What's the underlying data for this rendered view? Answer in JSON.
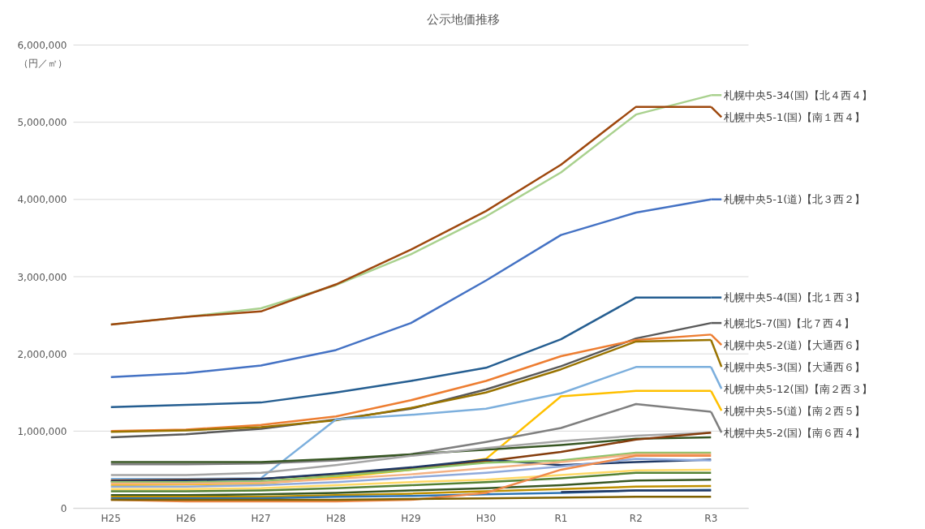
{
  "chart_data": {
    "type": "line",
    "title": "公示地価推移",
    "ylabel": "（円／㎡）",
    "categories": [
      "H25",
      "H26",
      "H27",
      "H28",
      "H29",
      "H30",
      "R1",
      "R2",
      "R3"
    ],
    "ylim": [
      0,
      6000000
    ],
    "yticks": [
      0,
      {
        "value": 1000000,
        "label": "1,000,000"
      },
      {
        "value": 2000000,
        "label": "2,000,000"
      },
      {
        "value": 3000000,
        "label": "3,000,000"
      },
      {
        "value": 4000000,
        "label": "4,000,000"
      },
      {
        "value": 5000000,
        "label": "5,000,000"
      },
      {
        "value": 6000000,
        "label": "6,000,000"
      }
    ],
    "grid": "y",
    "legend": "right",
    "marker": "none",
    "line_style": "solid",
    "series": [
      {
        "name": "札幌中央5-34(国)【北４西４】",
        "color": "#a9d18e",
        "values": [
          2380000,
          2480000,
          2590000,
          2890000,
          3290000,
          3780000,
          4350000,
          5100000,
          5350000
        ]
      },
      {
        "name": "札幌中央5-1(国)【南１西４】",
        "color": "#9e480e",
        "values": [
          2380000,
          2480000,
          2550000,
          2900000,
          3350000,
          3850000,
          4450000,
          5200000,
          5200000
        ]
      },
      {
        "name": "札幌中央5-1(道)【北３西２】",
        "color": "#4472c4",
        "values": [
          1700000,
          1750000,
          1850000,
          2050000,
          2400000,
          2950000,
          3540000,
          3830000,
          4000000
        ]
      },
      {
        "name": "札幌中央5-4(国)【北１西３】",
        "color": "#255e91",
        "values": [
          1310000,
          1340000,
          1370000,
          1500000,
          1650000,
          1820000,
          2190000,
          2730000,
          2730000
        ]
      },
      {
        "name": "札幌北5-7(国)【北７西４】",
        "color": "#595959",
        "values": [
          920000,
          960000,
          1030000,
          1150000,
          1290000,
          1540000,
          1840000,
          2200000,
          2400000
        ]
      },
      {
        "name": "札幌中央5-2(道)【大通西６】",
        "color": "#ed7d31",
        "values": [
          1000000,
          1020000,
          1080000,
          1190000,
          1400000,
          1650000,
          1970000,
          2180000,
          2250000
        ]
      },
      {
        "name": "札幌中央5-3(国)【大通西６】",
        "color": "#997300",
        "values": [
          990000,
          1010000,
          1050000,
          1140000,
          1300000,
          1500000,
          1800000,
          2160000,
          2180000
        ]
      },
      {
        "name": "札幌中央5-12(国)【南２西３】",
        "color": "#7cafdd",
        "values": [
          380000,
          380000,
          390000,
          1150000,
          1210000,
          1290000,
          1490000,
          1830000,
          1830000
        ]
      },
      {
        "name": "札幌中央5-5(道)【南２西５】",
        "color": "#ffc000",
        "values": [
          300000,
          310000,
          320000,
          400000,
          500000,
          640000,
          1450000,
          1520000,
          1520000
        ]
      },
      {
        "name": "札幌中央5-2(国)【南６西４】",
        "color": "#7f7f7f",
        "values": [
          570000,
          570000,
          580000,
          620000,
          700000,
          860000,
          1040000,
          1350000,
          1250000
        ]
      },
      {
        "color": "#375623",
        "values": [
          600000,
          600000,
          600000,
          640000,
          700000,
          760000,
          820000,
          900000,
          920000
        ]
      },
      {
        "color": "#a5a5a5",
        "values": [
          430000,
          430000,
          460000,
          560000,
          680000,
          780000,
          870000,
          940000,
          980000
        ]
      },
      {
        "color": "#843c0c",
        "values": [
          360000,
          370000,
          380000,
          440000,
          510000,
          610000,
          730000,
          890000,
          980000
        ]
      },
      {
        "color": "#1f3864",
        "values": [
          350000,
          360000,
          380000,
          450000,
          530000,
          630000,
          560000,
          600000,
          630000
        ]
      },
      {
        "color": "#8fc36a",
        "values": [
          340000,
          340000,
          350000,
          420000,
          500000,
          590000,
          620000,
          720000,
          720000
        ]
      },
      {
        "color": "#f4b183",
        "values": [
          320000,
          320000,
          330000,
          380000,
          440000,
          520000,
          600000,
          700000,
          700000
        ]
      },
      {
        "color": "#8faadc",
        "values": [
          280000,
          280000,
          300000,
          340000,
          400000,
          460000,
          540000,
          640000,
          620000
        ]
      },
      {
        "color": "#ffd966",
        "values": [
          250000,
          250000,
          260000,
          300000,
          340000,
          370000,
          430000,
          490000,
          500000
        ]
      },
      {
        "color": "#548235",
        "values": [
          220000,
          220000,
          230000,
          260000,
          300000,
          340000,
          390000,
          460000,
          460000
        ]
      },
      {
        "color": "#385723",
        "values": [
          170000,
          170000,
          180000,
          200000,
          230000,
          260000,
          300000,
          360000,
          370000
        ]
      },
      {
        "color": "#bf9000",
        "values": [
          150000,
          150000,
          150000,
          170000,
          190000,
          220000,
          250000,
          280000,
          290000
        ]
      },
      {
        "color": "#2e75b6",
        "values": [
          130000,
          130000,
          130000,
          150000,
          160000,
          180000,
          200000,
          230000,
          240000
        ]
      },
      {
        "color": "#f08a4b",
        "values": [
          110000,
          90000,
          90000,
          90000,
          110000,
          200000,
          500000,
          680000,
          680000
        ]
      },
      {
        "color": "#7f6000",
        "values": [
          110000,
          110000,
          110000,
          110000,
          120000,
          130000,
          140000,
          150000,
          150000
        ]
      },
      {
        "color": "#203864",
        "values": [
          null,
          null,
          null,
          null,
          null,
          null,
          210000,
          230000,
          230000
        ]
      }
    ]
  }
}
